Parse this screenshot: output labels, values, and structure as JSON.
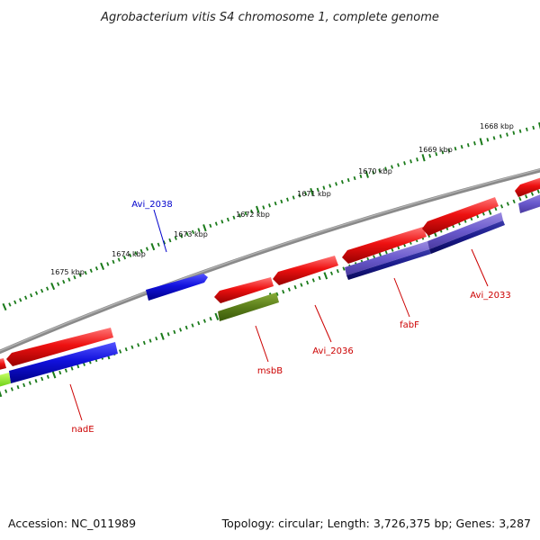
{
  "title": "Agrobacterium vitis S4 chromosome 1, complete genome",
  "footer": {
    "accession": "Accession: NC_011989",
    "summary": "Topology: circular; Length: 3,726,375 bp; Genes: 3,287"
  },
  "ticks_kbp": [
    {
      "kbp": 1668,
      "label": "1668 kbp"
    },
    {
      "kbp": 1669,
      "label": "1669 kbp"
    },
    {
      "kbp": 1670,
      "label": "1670 kbp"
    },
    {
      "kbp": 1671,
      "label": "1671 kbp"
    },
    {
      "kbp": 1672,
      "label": "1672 kbp"
    },
    {
      "kbp": 1673,
      "label": "1673 kbp"
    },
    {
      "kbp": 1674,
      "label": "1674 kbp"
    },
    {
      "kbp": 1675,
      "label": "1675 kbp"
    }
  ],
  "gene_labels": [
    {
      "name": "Avi_2038",
      "color": "#0000cc"
    },
    {
      "name": "msbB",
      "color": "#cc0000"
    },
    {
      "name": "Avi_2036",
      "color": "#cc0000"
    },
    {
      "name": "fabF",
      "color": "#cc0000"
    },
    {
      "name": "Avi_2033",
      "color": "#cc0000"
    },
    {
      "name": "nadE",
      "color": "#cc0000"
    }
  ],
  "colors": {
    "backbone": "#777777",
    "tick": "#1a7a1a",
    "cds_red": "#ee1111",
    "cds_blue": "#1111dd",
    "cds_olive": "#5a7d1a",
    "cds_lavender": "#6a5acd",
    "cds_navy": "#1a1a8a",
    "cds_lime": "#88ee22"
  }
}
